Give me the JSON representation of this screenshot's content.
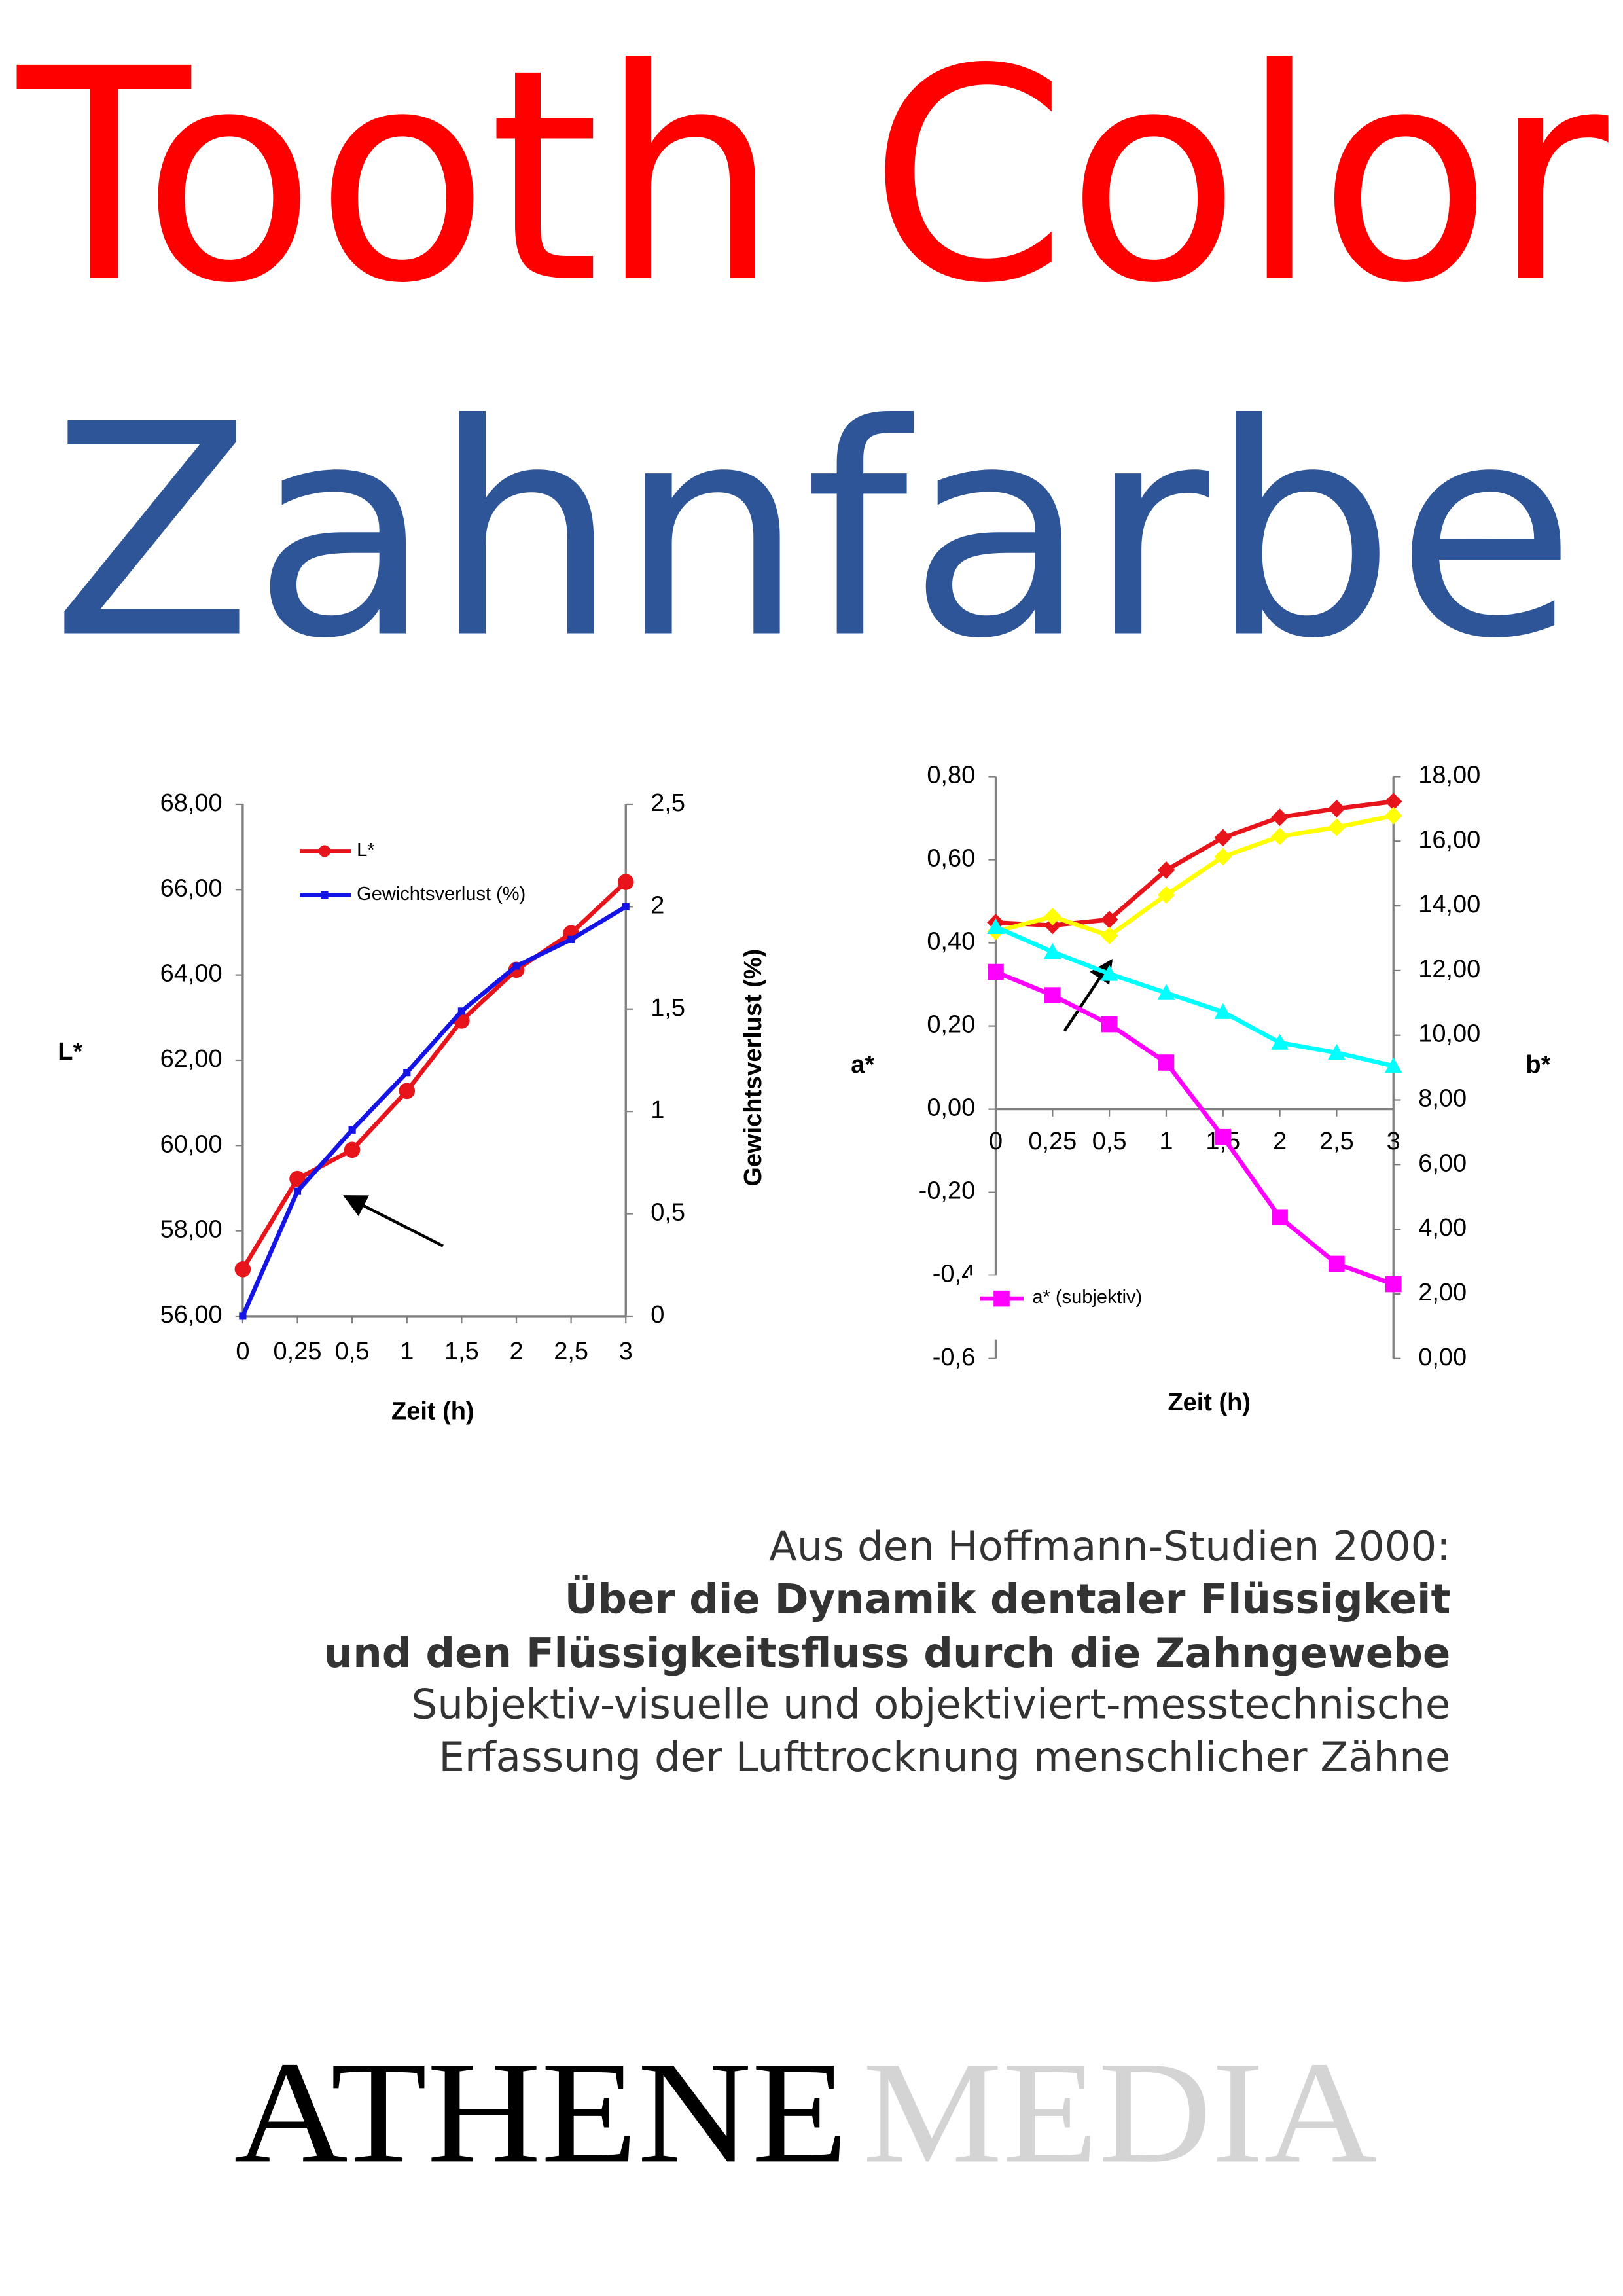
{
  "header": {
    "title": "Tooth Color",
    "subtitle": "Zahnfarbe"
  },
  "chart_data": [
    {
      "type": "line",
      "x_label": "Zeit (h)",
      "y_label": "L*",
      "y2_label": "Gewichtsverlust (%)",
      "categories": [
        "0",
        "0,25",
        "0,5",
        "1",
        "1,5",
        "2",
        "2,5",
        "3"
      ],
      "series": [
        {
          "name": "L*",
          "color": "#e8141b",
          "marker": "circle",
          "values": [
            57.1,
            59.22,
            59.9,
            61.28,
            62.93,
            64.12,
            64.98,
            66.18
          ]
        },
        {
          "name": "Gewichtsverlust (%)",
          "color": "#1414e6",
          "marker": "square",
          "axis": "y2",
          "values": [
            0,
            0.61,
            0.91,
            1.19,
            1.49,
            1.71,
            1.84,
            2.0
          ]
        }
      ],
      "ylim": [
        56,
        68
      ],
      "yticks": [
        {
          "value": 56,
          "label": "56,00"
        },
        {
          "value": 58,
          "label": "58,00"
        },
        {
          "value": 60,
          "label": "60,00"
        },
        {
          "value": 62,
          "label": "62,00"
        },
        {
          "value": 64,
          "label": "64,00"
        },
        {
          "value": 66,
          "label": "66,00"
        },
        {
          "value": 68,
          "label": "68,00"
        }
      ],
      "y2lim": [
        0,
        2.5
      ],
      "y2ticks": [
        0,
        {
          "value": 0.5,
          "label": "0,5"
        },
        1,
        {
          "value": 1.5,
          "label": "1,5"
        },
        2,
        {
          "value": 2.5,
          "label": "2,5"
        }
      ]
    },
    {
      "type": "line",
      "x_label": "Zeit (h)",
      "y_label": "a*",
      "y2_label": "b*",
      "categories": [
        "0",
        "0,25",
        "0,5",
        "1",
        "1,5",
        "2",
        "2,5",
        "3"
      ],
      "series": [
        {
          "color": "#e8141b",
          "marker": "diamond",
          "values": [
            0.449,
            0.442,
            0.456,
            0.575,
            0.653,
            0.702,
            0.723,
            0.74
          ]
        },
        {
          "name": "a* (subjektiv)",
          "color": "#ff00ff",
          "marker": "square",
          "values": [
            0.33,
            0.274,
            0.204,
            0.112,
            -0.067,
            -0.26,
            -0.372,
            -0.421
          ]
        },
        {
          "color": "#ffff00",
          "marker": "diamond",
          "axis": "y2",
          "values": [
            13.21,
            13.67,
            13.08,
            14.34,
            15.52,
            16.15,
            16.43,
            16.79
          ]
        },
        {
          "color": "#00ffff",
          "marker": "triangle",
          "axis": "y2",
          "values": [
            13.35,
            12.58,
            11.9,
            11.31,
            10.72,
            9.77,
            9.46,
            9.05
          ]
        }
      ],
      "ylim": [
        -0.6,
        0.8
      ],
      "yticks": [
        {
          "value": -0.6,
          "label": "-0,6"
        },
        {
          "value": -0.4,
          "label": "-0,4"
        },
        {
          "value": -0.2,
          "label": "-0,20"
        },
        {
          "value": 0,
          "label": "0,00"
        },
        {
          "value": 0.2,
          "label": "0,20"
        },
        {
          "value": 0.4,
          "label": "0,40"
        },
        {
          "value": 0.6,
          "label": "0,60"
        },
        {
          "value": 0.8,
          "label": "0,80"
        }
      ],
      "y2lim": [
        0,
        18
      ],
      "y2ticks": [
        {
          "value": 0,
          "label": "0,00"
        },
        {
          "value": 2,
          "label": "2,00"
        },
        {
          "value": 4,
          "label": "4,00"
        },
        {
          "value": 6,
          "label": "6,00"
        },
        {
          "value": 8,
          "label": "8,00"
        },
        {
          "value": 10,
          "label": "10,00"
        },
        {
          "value": 12,
          "label": "12,00"
        },
        {
          "value": 14,
          "label": "14,00"
        },
        {
          "value": 16,
          "label": "16,00"
        },
        {
          "value": 18,
          "label": "18,00"
        }
      ]
    }
  ],
  "text": {
    "source": "Aus den Hoffmann-Studien 2000:",
    "title_lines": [
      "Über die Dynamik dentaler Flüssigkeit",
      "und den Flüssigkeitsfluss durch die Zahngewebe"
    ],
    "description_lines": [
      "Subjektiv-visuelle und objektiviert-messtechnische",
      "Erfassung der Lufttrocknung menschlicher Zähne"
    ]
  },
  "publisher": {
    "name_dark": "ATHENE",
    "name_light": "MEDIA"
  }
}
